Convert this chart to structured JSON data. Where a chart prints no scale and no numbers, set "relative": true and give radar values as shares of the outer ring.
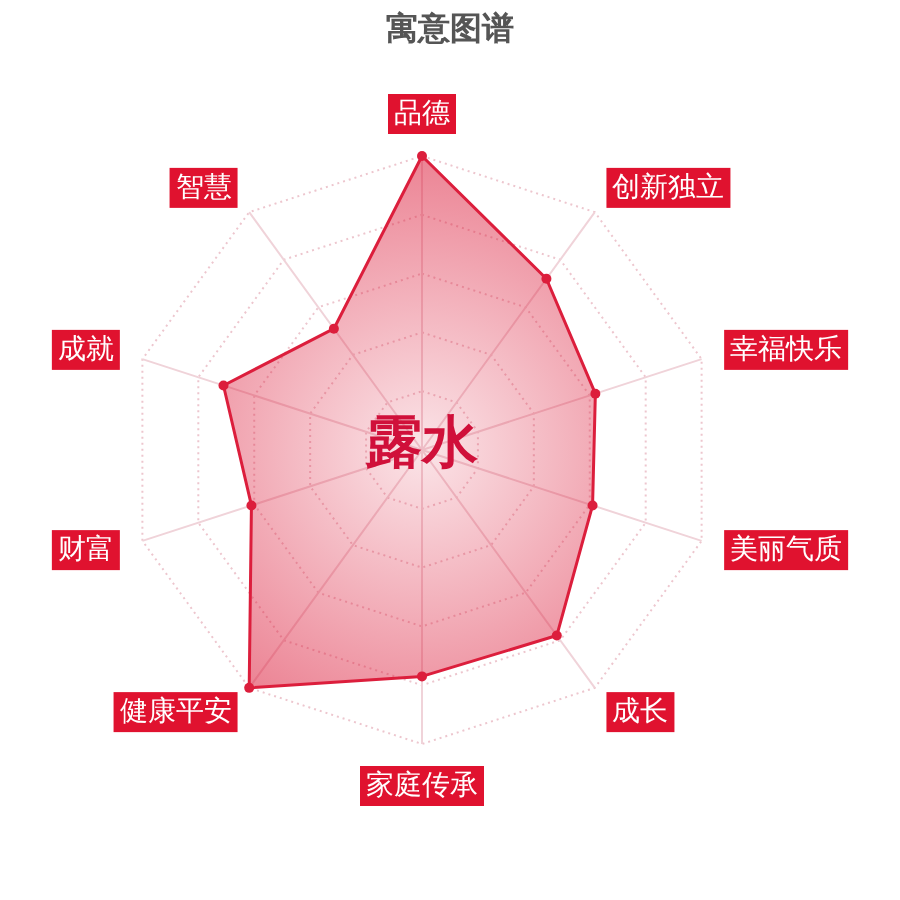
{
  "chart_data": {
    "type": "radar",
    "title": "寓意图谱",
    "relative": true,
    "categories": [
      "品德",
      "创新独立",
      "幸福快乐",
      "美丽气质",
      "成长",
      "家庭传承",
      "健康平安",
      "财富",
      "成就",
      "智慧"
    ],
    "series": [
      {
        "color": "#dc1e3c",
        "values": [
          1,
          0.72,
          0.62,
          0.61,
          0.78,
          0.77,
          1,
          0.61,
          0.71,
          0.51
        ]
      }
    ],
    "annotations": [
      "露水"
    ],
    "marker": "circle",
    "grid": true
  }
}
